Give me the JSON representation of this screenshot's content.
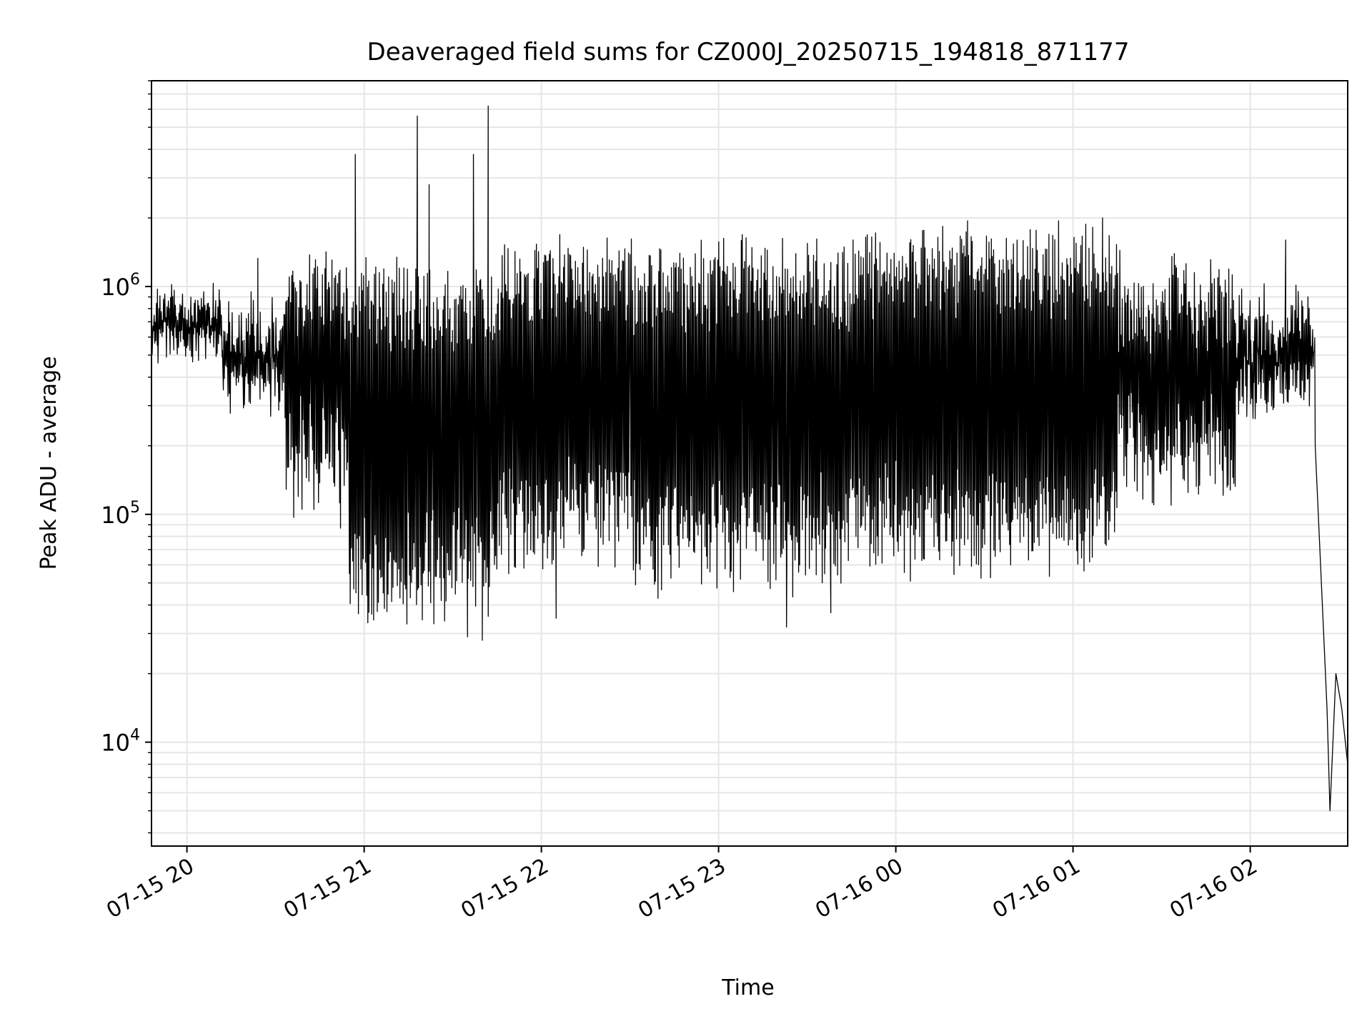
{
  "chart_data": {
    "type": "line",
    "title": "Deaveraged field sums for CZ000J_20250715_194818_871177",
    "xlabel": "Time",
    "ylabel": "Peak ADU - average",
    "yscale": "log",
    "ylim": [
      3500,
      8000000
    ],
    "xlim": [
      "2025-07-15 19:48",
      "2025-07-16 02:33"
    ],
    "grid": true,
    "line_color": "#000000",
    "grid_color": "#e6e6e6",
    "x_ticks": [
      {
        "t": "2025-07-15 20:00",
        "label": "07-15 20"
      },
      {
        "t": "2025-07-15 21:00",
        "label": "07-15 21"
      },
      {
        "t": "2025-07-15 22:00",
        "label": "07-15 22"
      },
      {
        "t": "2025-07-15 23:00",
        "label": "07-15 23"
      },
      {
        "t": "2025-07-16 00:00",
        "label": "07-16 00"
      },
      {
        "t": "2025-07-16 01:00",
        "label": "07-16 01"
      },
      {
        "t": "2025-07-16 02:00",
        "label": "07-16 02"
      }
    ],
    "y_ticks": [
      {
        "value": 10000,
        "base": "10",
        "exp": "4"
      },
      {
        "value": 100000,
        "base": "10",
        "exp": "5"
      },
      {
        "value": 1000000,
        "base": "10",
        "exp": "6"
      }
    ],
    "series": [
      {
        "band_segments": [
          {
            "start": "2025-07-15 19:48",
            "end": "2025-07-15 20:12",
            "upper": [
              700000,
              1100000
            ],
            "lower": [
              450000,
              650000
            ]
          },
          {
            "start": "2025-07-15 20:12",
            "end": "2025-07-15 20:33",
            "upper": [
              500000,
              1000000
            ],
            "lower": [
              250000,
              450000
            ]
          },
          {
            "start": "2025-07-15 20:33",
            "end": "2025-07-15 20:55",
            "upper": [
              900000,
              1600000
            ],
            "lower": [
              90000,
              250000
            ]
          },
          {
            "start": "2025-07-15 20:55",
            "end": "2025-07-15 21:45",
            "upper": [
              1100000,
              1500000
            ],
            "lower": [
              30000,
              50000
            ]
          },
          {
            "start": "2025-07-15 21:45",
            "end": "2025-07-15 22:30",
            "upper": [
              1400000,
              1800000
            ],
            "lower": [
              50000,
              90000
            ]
          },
          {
            "start": "2025-07-15 22:30",
            "end": "2025-07-15 23:45",
            "upper": [
              1300000,
              1750000
            ],
            "lower": [
              40000,
              80000
            ]
          },
          {
            "start": "2025-07-15 23:45",
            "end": "2025-07-16 01:15",
            "upper": [
              1600000,
              1950000
            ],
            "lower": [
              50000,
              80000
            ]
          },
          {
            "start": "2025-07-16 01:15",
            "end": "2025-07-16 01:55",
            "upper": [
              700000,
              1500000
            ],
            "lower": [
              90000,
              250000
            ]
          },
          {
            "start": "2025-07-16 01:55",
            "end": "2025-07-16 02:22",
            "upper": [
              500000,
              1200000
            ],
            "lower": [
              250000,
              450000
            ]
          }
        ],
        "points": [
          [
            "2025-07-15 19:48",
            420000
          ],
          [
            "2025-07-15 20:24",
            1330000
          ],
          [
            "2025-07-15 20:39",
            215000
          ],
          [
            "2025-07-15 20:43",
            105000
          ],
          [
            "2025-07-15 20:52",
            87000
          ],
          [
            "2025-07-15 20:55",
            55000
          ],
          [
            "2025-07-15 20:57",
            3800000
          ],
          [
            "2025-07-15 21:18",
            5600000
          ],
          [
            "2025-07-15 21:22",
            2800000
          ],
          [
            "2025-07-15 21:35",
            29000
          ],
          [
            "2025-07-15 21:37",
            3800000
          ],
          [
            "2025-07-15 21:40",
            28000
          ],
          [
            "2025-07-15 21:42",
            6200000
          ],
          [
            "2025-07-15 22:05",
            35000
          ],
          [
            "2025-07-15 23:23",
            32000
          ],
          [
            "2025-07-15 23:38",
            37000
          ],
          [
            "2025-07-16 01:10",
            2000000
          ],
          [
            "2025-07-16 02:12",
            1600000
          ],
          [
            "2025-07-16 02:20",
            320000
          ],
          [
            "2025-07-16 02:22",
            200000
          ],
          [
            "2025-07-16 02:26",
            14000
          ],
          [
            "2025-07-16 02:27",
            5000
          ],
          [
            "2025-07-16 02:29",
            20000
          ],
          [
            "2025-07-16 02:31",
            14000
          ],
          [
            "2025-07-16 02:33",
            8000
          ]
        ]
      }
    ]
  }
}
